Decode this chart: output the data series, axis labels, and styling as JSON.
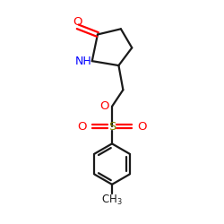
{
  "background_color": "#ffffff",
  "bond_color": "#1a1a1a",
  "bond_width": 1.6,
  "o_color": "#ff0000",
  "n_color": "#0000ff",
  "s_color": "#808000",
  "text_color": "#1a1a1a",
  "figsize": [
    2.5,
    2.5
  ],
  "dpi": 100,
  "xlim": [
    0,
    10
  ],
  "ylim": [
    0,
    10
  ]
}
